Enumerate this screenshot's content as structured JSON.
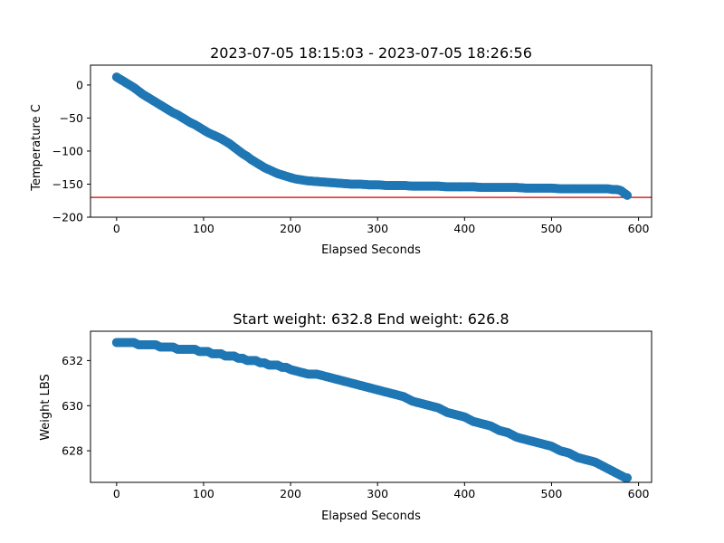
{
  "chart_data": [
    {
      "type": "scatter",
      "title": "2023-07-05 18:15:03 - 2023-07-05 18:26:56",
      "xlabel": "Elapsed Seconds",
      "ylabel": "Temperature C",
      "xlim": [
        -30,
        615
      ],
      "ylim": [
        -200,
        30
      ],
      "xticks": [
        0,
        100,
        200,
        300,
        400,
        500,
        600
      ],
      "xtick_labels": [
        "0",
        "100",
        "200",
        "300",
        "400",
        "500",
        "600"
      ],
      "yticks": [
        0,
        -50,
        -100,
        -150,
        -200
      ],
      "ytick_labels": [
        "0",
        "−50",
        "−100",
        "−150",
        "−200"
      ],
      "grid": false,
      "reference_line": {
        "y": -170,
        "color": "#d62728"
      },
      "series": [
        {
          "color": "#1f77b4",
          "points": [
            [
              0,
              12
            ],
            [
              5,
              8
            ],
            [
              10,
              4
            ],
            [
              15,
              0
            ],
            [
              20,
              -4
            ],
            [
              25,
              -9
            ],
            [
              30,
              -14
            ],
            [
              35,
              -18
            ],
            [
              40,
              -22
            ],
            [
              45,
              -26
            ],
            [
              50,
              -30
            ],
            [
              55,
              -34
            ],
            [
              60,
              -38
            ],
            [
              65,
              -42
            ],
            [
              70,
              -45
            ],
            [
              75,
              -49
            ],
            [
              80,
              -53
            ],
            [
              85,
              -57
            ],
            [
              90,
              -60
            ],
            [
              95,
              -64
            ],
            [
              100,
              -68
            ],
            [
              105,
              -72
            ],
            [
              110,
              -75
            ],
            [
              115,
              -78
            ],
            [
              120,
              -81
            ],
            [
              125,
              -85
            ],
            [
              130,
              -89
            ],
            [
              135,
              -94
            ],
            [
              140,
              -99
            ],
            [
              145,
              -104
            ],
            [
              150,
              -108
            ],
            [
              155,
              -113
            ],
            [
              160,
              -117
            ],
            [
              165,
              -121
            ],
            [
              170,
              -125
            ],
            [
              175,
              -128
            ],
            [
              180,
              -131
            ],
            [
              185,
              -134
            ],
            [
              190,
              -136
            ],
            [
              195,
              -138
            ],
            [
              200,
              -140
            ],
            [
              205,
              -142
            ],
            [
              210,
              -143
            ],
            [
              215,
              -144
            ],
            [
              220,
              -145
            ],
            [
              230,
              -146
            ],
            [
              240,
              -147
            ],
            [
              250,
              -148
            ],
            [
              260,
              -149
            ],
            [
              270,
              -150
            ],
            [
              280,
              -150
            ],
            [
              290,
              -151
            ],
            [
              300,
              -151
            ],
            [
              310,
              -152
            ],
            [
              320,
              -152
            ],
            [
              330,
              -152
            ],
            [
              340,
              -153
            ],
            [
              350,
              -153
            ],
            [
              360,
              -153
            ],
            [
              370,
              -153
            ],
            [
              380,
              -154
            ],
            [
              390,
              -154
            ],
            [
              400,
              -154
            ],
            [
              410,
              -154
            ],
            [
              420,
              -155
            ],
            [
              430,
              -155
            ],
            [
              440,
              -155
            ],
            [
              450,
              -155
            ],
            [
              460,
              -155
            ],
            [
              470,
              -156
            ],
            [
              480,
              -156
            ],
            [
              490,
              -156
            ],
            [
              500,
              -156
            ],
            [
              510,
              -157
            ],
            [
              520,
              -157
            ],
            [
              530,
              -157
            ],
            [
              540,
              -157
            ],
            [
              550,
              -157
            ],
            [
              560,
              -157
            ],
            [
              565,
              -157
            ],
            [
              570,
              -158
            ],
            [
              575,
              -158
            ],
            [
              578,
              -159
            ],
            [
              580,
              -160
            ],
            [
              582,
              -162
            ],
            [
              584,
              -164
            ],
            [
              586,
              -166
            ],
            [
              587,
              -167
            ]
          ]
        }
      ]
    },
    {
      "type": "scatter",
      "title": "Start weight: 632.8 End weight: 626.8",
      "xlabel": "Elapsed Seconds",
      "ylabel": "Weight LBS",
      "xlim": [
        -30,
        615
      ],
      "ylim": [
        626.6,
        633.3
      ],
      "xticks": [
        0,
        100,
        200,
        300,
        400,
        500,
        600
      ],
      "xtick_labels": [
        "0",
        "100",
        "200",
        "300",
        "400",
        "500",
        "600"
      ],
      "yticks": [
        628,
        630,
        632
      ],
      "ytick_labels": [
        "628",
        "630",
        "632"
      ],
      "grid": false,
      "series": [
        {
          "color": "#1f77b4",
          "points": [
            [
              0,
              632.8
            ],
            [
              5,
              632.8
            ],
            [
              10,
              632.8
            ],
            [
              15,
              632.8
            ],
            [
              20,
              632.8
            ],
            [
              25,
              632.7
            ],
            [
              30,
              632.7
            ],
            [
              35,
              632.7
            ],
            [
              40,
              632.7
            ],
            [
              45,
              632.7
            ],
            [
              50,
              632.6
            ],
            [
              55,
              632.6
            ],
            [
              60,
              632.6
            ],
            [
              65,
              632.6
            ],
            [
              70,
              632.5
            ],
            [
              75,
              632.5
            ],
            [
              80,
              632.5
            ],
            [
              85,
              632.5
            ],
            [
              90,
              632.5
            ],
            [
              95,
              632.4
            ],
            [
              100,
              632.4
            ],
            [
              105,
              632.4
            ],
            [
              110,
              632.3
            ],
            [
              115,
              632.3
            ],
            [
              120,
              632.3
            ],
            [
              125,
              632.2
            ],
            [
              130,
              632.2
            ],
            [
              135,
              632.2
            ],
            [
              140,
              632.1
            ],
            [
              145,
              632.1
            ],
            [
              150,
              632.0
            ],
            [
              155,
              632.0
            ],
            [
              160,
              632.0
            ],
            [
              165,
              631.9
            ],
            [
              170,
              631.9
            ],
            [
              175,
              631.8
            ],
            [
              180,
              631.8
            ],
            [
              185,
              631.8
            ],
            [
              190,
              631.7
            ],
            [
              195,
              631.7
            ],
            [
              200,
              631.6
            ],
            [
              210,
              631.5
            ],
            [
              220,
              631.4
            ],
            [
              230,
              631.4
            ],
            [
              240,
              631.3
            ],
            [
              250,
              631.2
            ],
            [
              260,
              631.1
            ],
            [
              270,
              631.0
            ],
            [
              280,
              630.9
            ],
            [
              290,
              630.8
            ],
            [
              300,
              630.7
            ],
            [
              310,
              630.6
            ],
            [
              320,
              630.5
            ],
            [
              330,
              630.4
            ],
            [
              340,
              630.2
            ],
            [
              350,
              630.1
            ],
            [
              360,
              630.0
            ],
            [
              370,
              629.9
            ],
            [
              380,
              629.7
            ],
            [
              390,
              629.6
            ],
            [
              400,
              629.5
            ],
            [
              410,
              629.3
            ],
            [
              420,
              629.2
            ],
            [
              430,
              629.1
            ],
            [
              440,
              628.9
            ],
            [
              450,
              628.8
            ],
            [
              460,
              628.6
            ],
            [
              470,
              628.5
            ],
            [
              480,
              628.4
            ],
            [
              490,
              628.3
            ],
            [
              500,
              628.2
            ],
            [
              510,
              628.0
            ],
            [
              520,
              627.9
            ],
            [
              530,
              627.7
            ],
            [
              540,
              627.6
            ],
            [
              550,
              627.5
            ],
            [
              560,
              627.3
            ],
            [
              570,
              627.1
            ],
            [
              575,
              627.0
            ],
            [
              580,
              626.9
            ],
            [
              585,
              626.8
            ],
            [
              587,
              626.8
            ]
          ]
        }
      ]
    }
  ]
}
